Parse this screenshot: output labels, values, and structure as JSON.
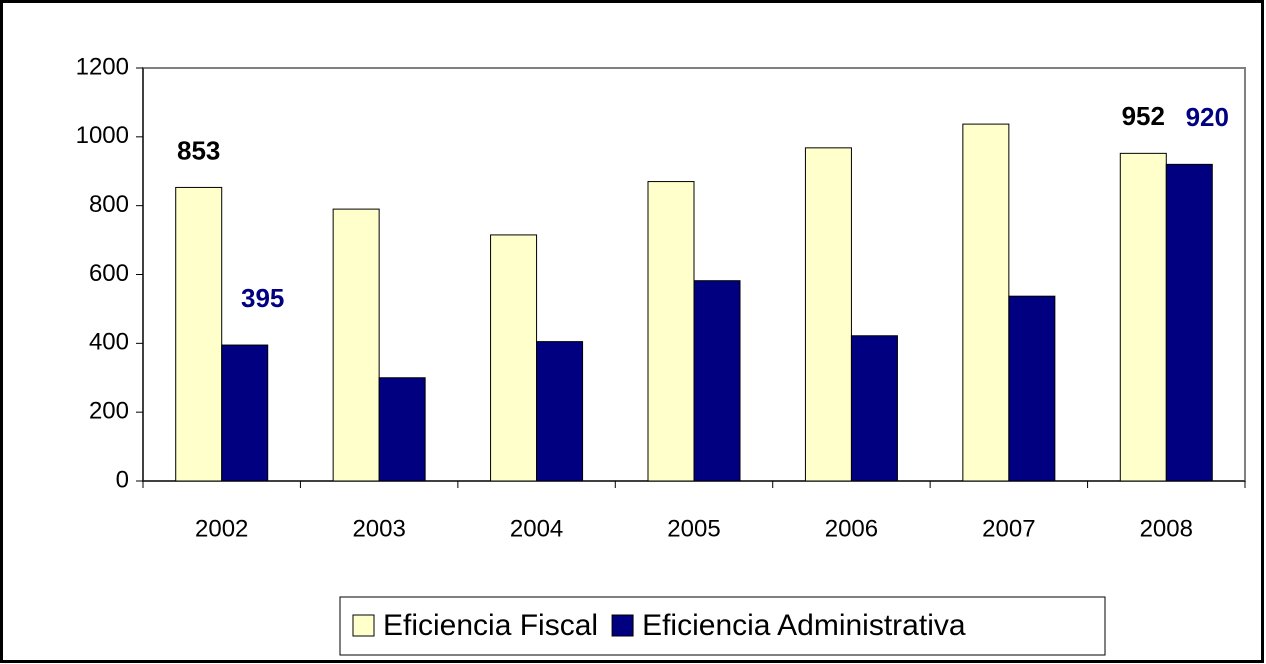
{
  "chart_data": {
    "type": "bar",
    "categories": [
      "2002",
      "2003",
      "2004",
      "2005",
      "2006",
      "2007",
      "2008"
    ],
    "series": [
      {
        "name": "Eficiencia Fiscal",
        "color": "#ffffcc",
        "label_color": "#000000",
        "values": [
          853,
          790,
          715,
          870,
          968,
          1037,
          952
        ],
        "value_labels": [
          "853",
          null,
          null,
          null,
          null,
          null,
          "952"
        ]
      },
      {
        "name": "Eficiencia Administrativa",
        "color": "#000080",
        "label_color": "#000080",
        "values": [
          395,
          300,
          405,
          582,
          422,
          537,
          920
        ],
        "value_labels": [
          "395",
          null,
          null,
          null,
          null,
          null,
          "920"
        ]
      }
    ],
    "ylim": [
      0,
      1200
    ],
    "yticks": [
      0,
      200,
      400,
      600,
      800,
      1000,
      1200
    ],
    "grid": false,
    "legend": "bottom"
  }
}
